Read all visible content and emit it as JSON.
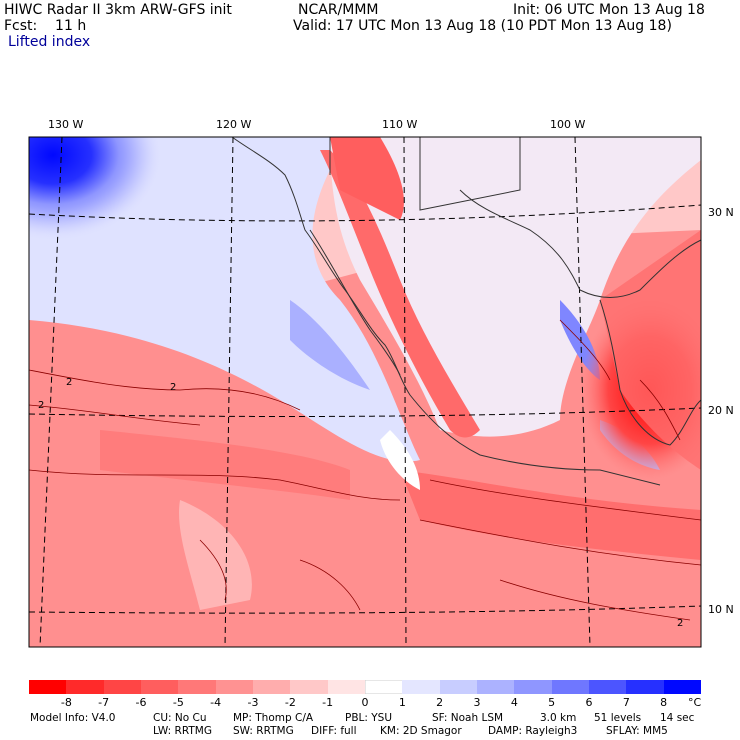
{
  "header": {
    "left_line1": "HIWC Radar II 3km ARW-GFS init",
    "left_line2": "Fcst:    11 h",
    "center": "NCAR/MMM",
    "right_line1": "Init: 06 UTC Mon 13 Aug 18",
    "right_line2": "Valid: 17 UTC Mon 13 Aug 18 (10 PDT Mon 13 Aug 18)",
    "field": "Lifted index"
  },
  "map": {
    "lon_labels": [
      "130 W",
      "120 W",
      "110 W",
      "100 W"
    ],
    "lat_labels": [
      "30 N",
      "20 N",
      "10 N"
    ],
    "contour_label": "2",
    "colors": {
      "strong_negative": "#ff1a1a",
      "negative": "#ff8c8c",
      "neutral": "#fde6e6",
      "positive": "#aab4ff",
      "strong_positive": "#0a14e6",
      "coast": "#333333",
      "contour": "#8b0000"
    }
  },
  "colorbar": {
    "labels": [
      "-8",
      "-7",
      "-6",
      "-5",
      "-4",
      "-3",
      "-2",
      "-1",
      "0",
      "1",
      "2",
      "3",
      "4",
      "5",
      "6",
      "7",
      "8"
    ],
    "unit": "°C",
    "colors": [
      "#ff0000",
      "#ff2a2a",
      "#ff4545",
      "#ff5e5e",
      "#ff7878",
      "#ff9292",
      "#ffadad",
      "#ffc8c8",
      "#ffe4e4",
      "#ffffff",
      "#e4e6ff",
      "#c8cdff",
      "#acb2ff",
      "#8f96ff",
      "#6f77ff",
      "#4c55ff",
      "#2630ff",
      "#0008ff"
    ]
  },
  "footer": {
    "model_info": "Model Info: V4.0",
    "cu": "CU: No Cu",
    "mp": "MP: Thomp C/A",
    "pbl": "PBL: YSU",
    "sf": "SF: Noah LSM",
    "res": "3.0 km",
    "levels": "51 levels",
    "step": "14 sec",
    "lw": "LW: RRTMG",
    "sw": "SW: RRTMG",
    "diff": "DIFF: full",
    "km": "KM: 2D Smagor",
    "damp": "DAMP: Rayleigh3",
    "sflay": "SFLAY: MM5"
  }
}
